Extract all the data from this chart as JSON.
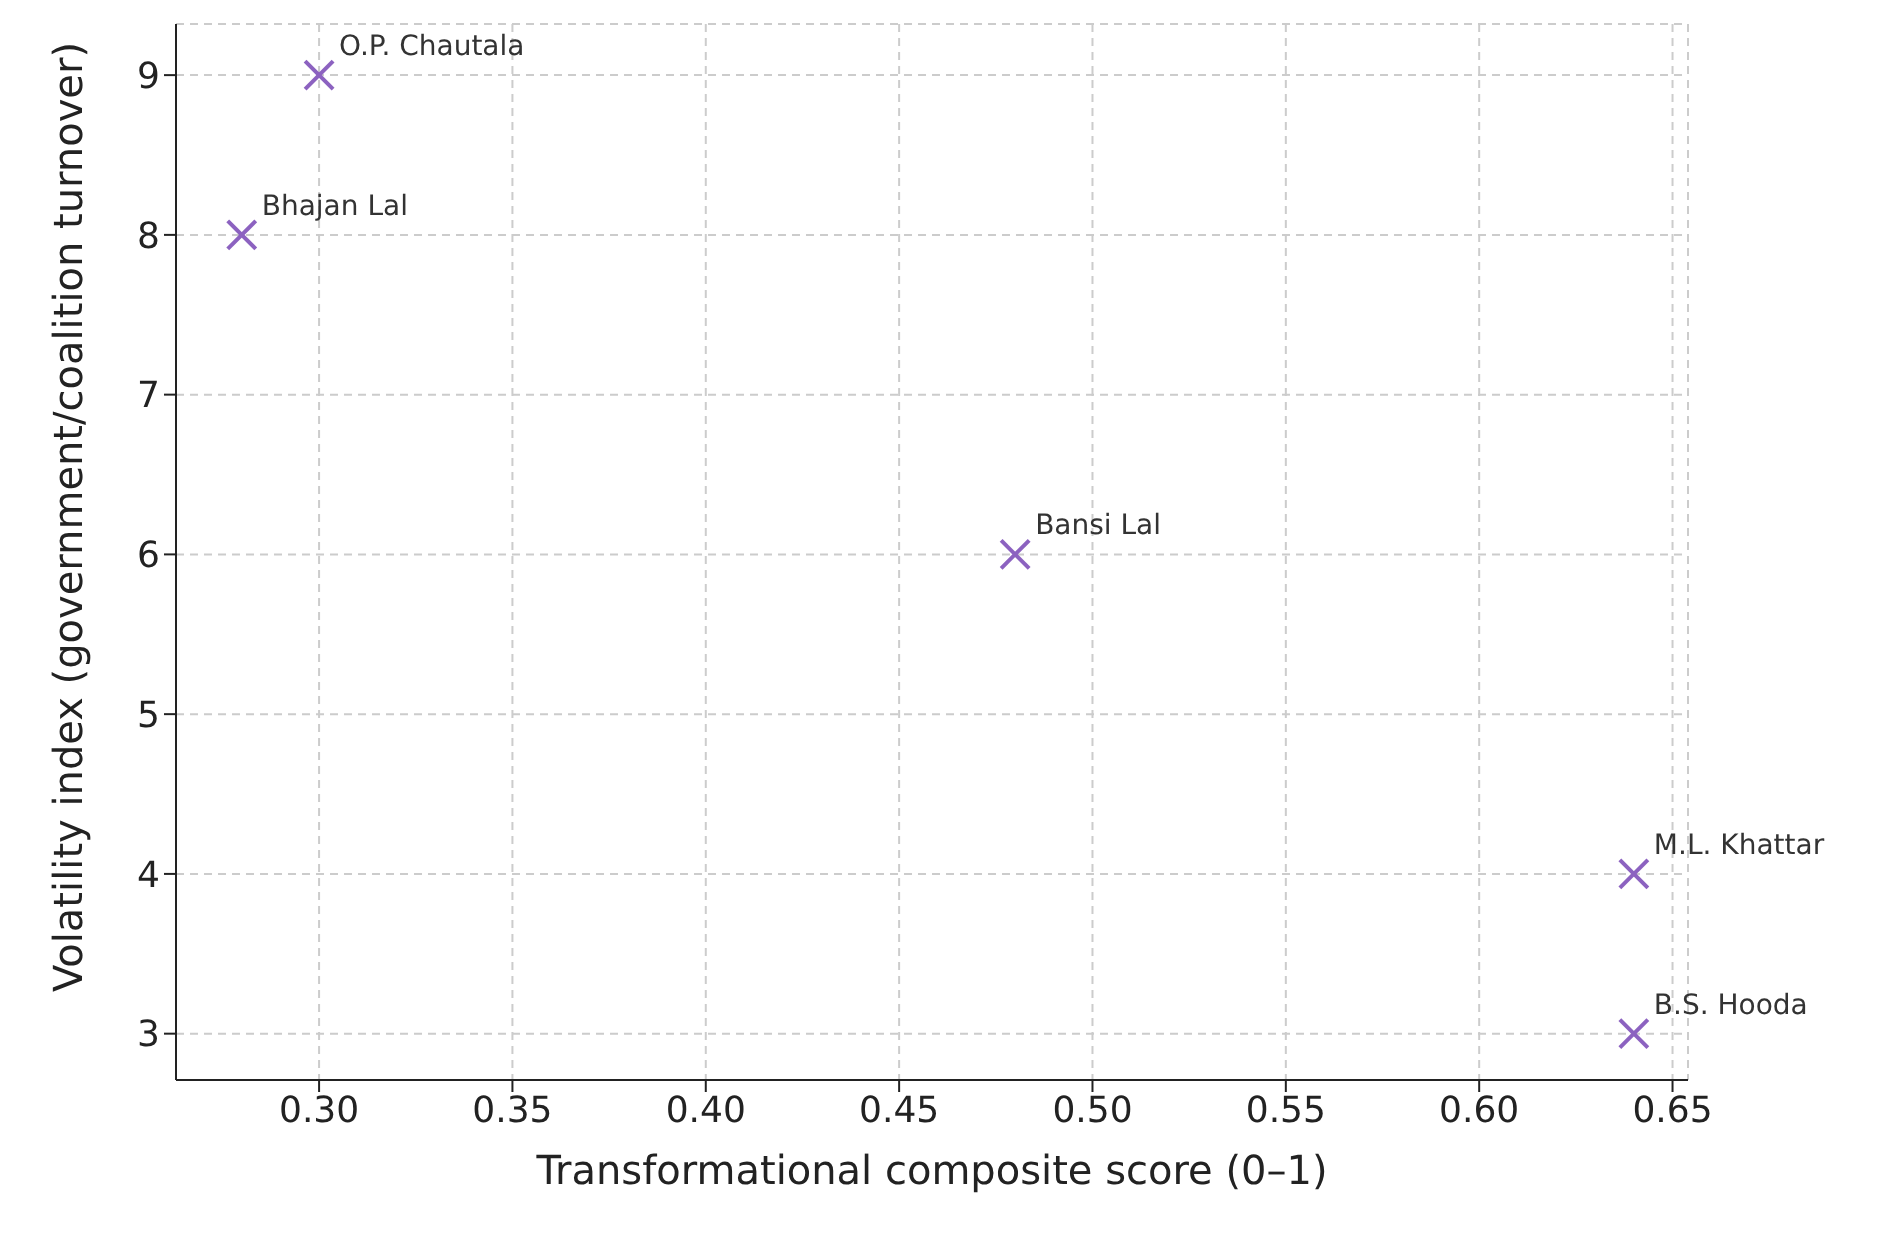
{
  "chart_data": {
    "type": "scatter",
    "xlabel": "Transformational composite score (0–1)",
    "ylabel": "Volatility index (government/coalition turnover)",
    "x": [
      0.3,
      0.28,
      0.48,
      0.64,
      0.64
    ],
    "series": [
      {
        "color": "#8c62c0",
        "values": [
          9,
          8,
          6,
          4,
          3
        ]
      }
    ],
    "annotations": [
      {
        "text": "O.P. Chautala",
        "x": 0.3,
        "y": 9
      },
      {
        "text": "Bhajan Lal",
        "x": 0.28,
        "y": 8
      },
      {
        "text": "Bansi Lal",
        "x": 0.48,
        "y": 6
      },
      {
        "text": "M.L. Khattar",
        "x": 0.64,
        "y": 4
      },
      {
        "text": "B.S. Hooda",
        "x": 0.64,
        "y": 3
      }
    ],
    "xlim": [
      0.263,
      0.654
    ],
    "xticks": [
      {
        "value": 0.3,
        "label": "0.30"
      },
      {
        "value": 0.35,
        "label": "0.35"
      },
      {
        "value": 0.4,
        "label": "0.40"
      },
      {
        "value": 0.45,
        "label": "0.45"
      },
      {
        "value": 0.5,
        "label": "0.50"
      },
      {
        "value": 0.55,
        "label": "0.55"
      },
      {
        "value": 0.6,
        "label": "0.60"
      },
      {
        "value": 0.65,
        "label": "0.65"
      }
    ],
    "ylim": [
      2.71,
      9.32
    ],
    "yticks": [
      3,
      4,
      5,
      6,
      7,
      8,
      9
    ],
    "grid": true,
    "marker": "cross",
    "legend": false
  }
}
